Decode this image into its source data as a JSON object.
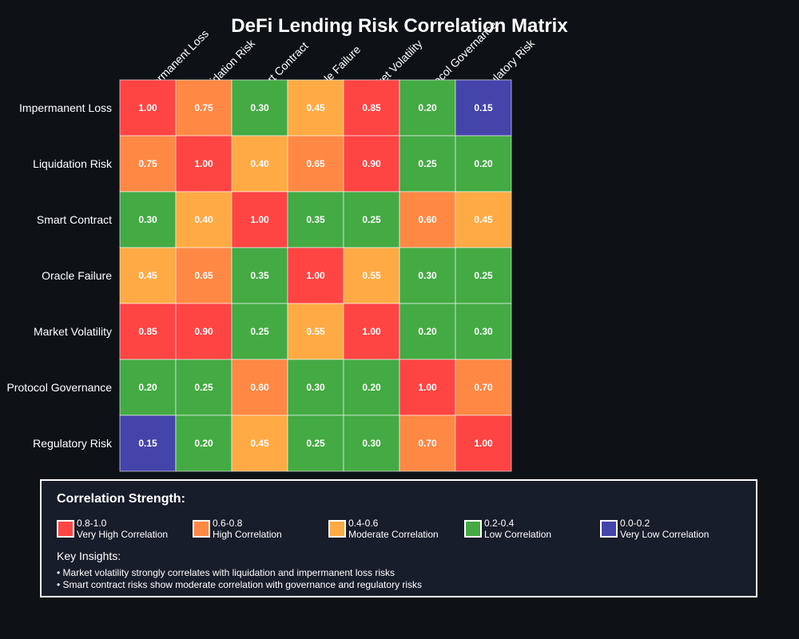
{
  "chart_data": {
    "type": "heatmap",
    "title": "DeFi Lending Risk Correlation Matrix",
    "categories": [
      "Impermanent Loss",
      "Liquidation Risk",
      "Smart Contract",
      "Oracle Failure",
      "Market Volatility",
      "Protocol Governance",
      "Regulatory Risk"
    ],
    "values": [
      [
        1.0,
        0.75,
        0.3,
        0.45,
        0.85,
        0.2,
        0.15
      ],
      [
        0.75,
        1.0,
        0.4,
        0.65,
        0.9,
        0.25,
        0.2
      ],
      [
        0.3,
        0.4,
        1.0,
        0.35,
        0.25,
        0.6,
        0.45
      ],
      [
        0.45,
        0.65,
        0.35,
        1.0,
        0.55,
        0.3,
        0.25
      ],
      [
        0.85,
        0.9,
        0.25,
        0.55,
        1.0,
        0.2,
        0.3
      ],
      [
        0.2,
        0.25,
        0.6,
        0.3,
        0.2,
        1.0,
        0.7
      ],
      [
        0.15,
        0.2,
        0.45,
        0.25,
        0.3,
        0.7,
        1.0
      ]
    ],
    "color_scale": [
      {
        "min": 0.8,
        "color": "#ff4444"
      },
      {
        "min": 0.6,
        "color": "#ff8844"
      },
      {
        "min": 0.4,
        "color": "#ffaa44"
      },
      {
        "min": 0.2,
        "color": "#44aa44"
      },
      {
        "min": 0.0,
        "color": "#4444aa"
      }
    ]
  },
  "legend": {
    "title": "Correlation Strength:",
    "items": [
      {
        "range": "0.8-1.0",
        "label": "Very High Correlation",
        "color": "#ff4444"
      },
      {
        "range": "0.6-0.8",
        "label": "High Correlation",
        "color": "#ff8844"
      },
      {
        "range": "0.4-0.6",
        "label": "Moderate Correlation",
        "color": "#ffaa44"
      },
      {
        "range": "0.2-0.4",
        "label": "Low Correlation",
        "color": "#44aa44"
      },
      {
        "range": "0.0-0.2",
        "label": "Very Low Correlation",
        "color": "#4444aa"
      }
    ]
  },
  "insights": {
    "title": "Key Insights:",
    "items": [
      "• Market volatility strongly correlates with liquidation and impermanent loss risks",
      "• Smart contract risks show moderate correlation with governance and regulatory risks"
    ]
  }
}
